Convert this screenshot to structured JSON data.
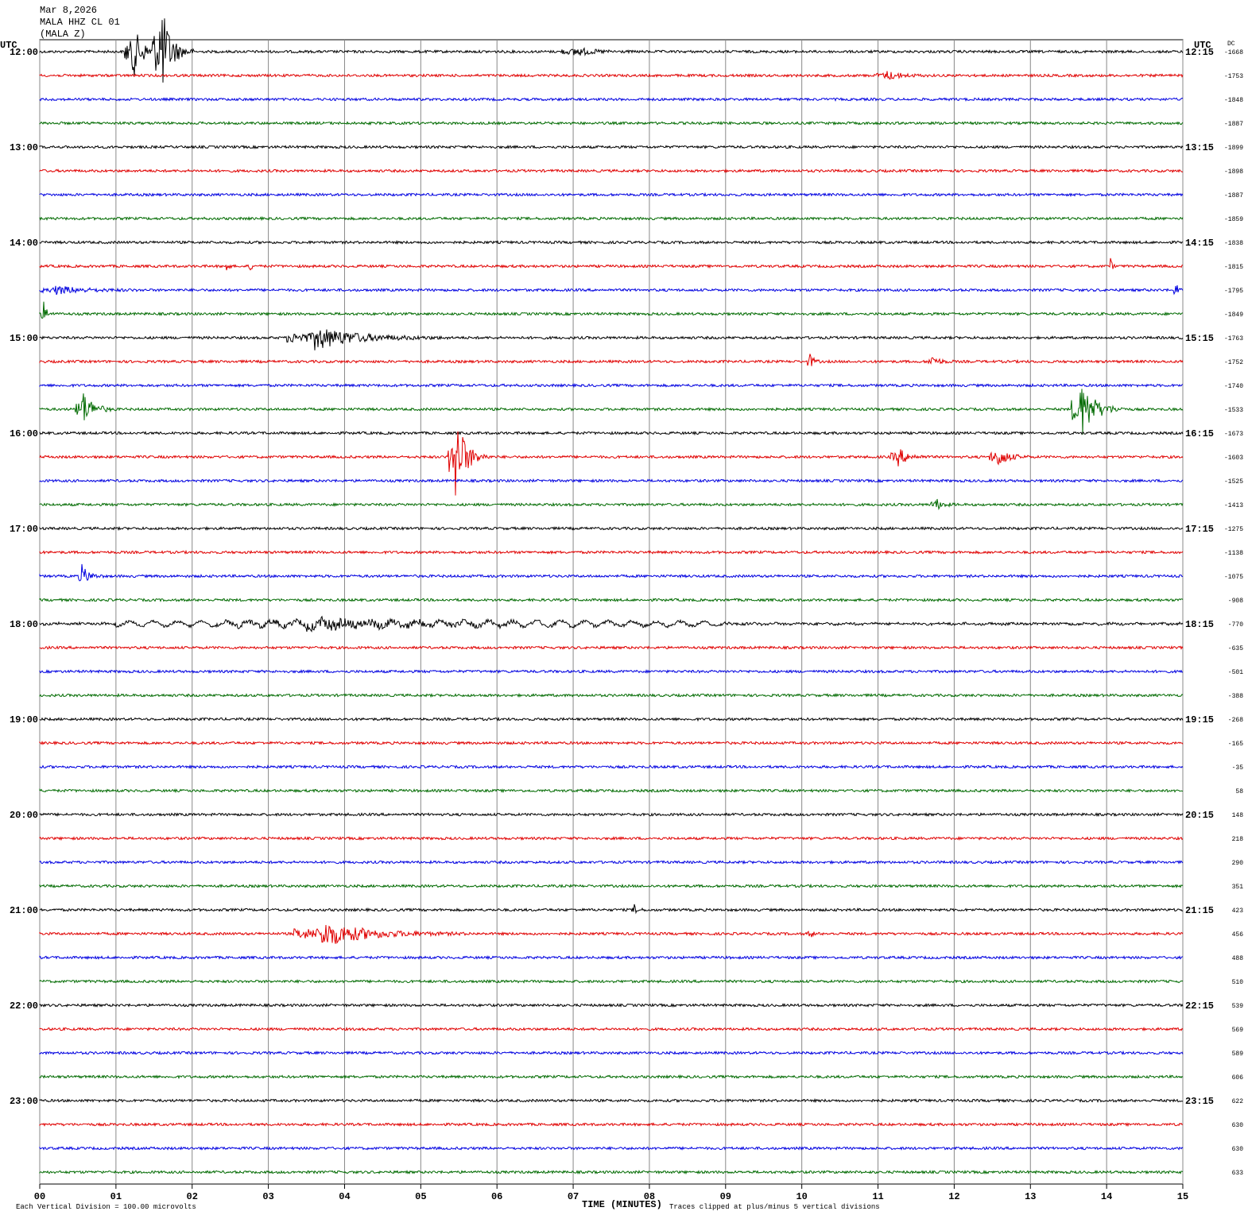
{
  "header": {
    "date": "Mar 8,2026",
    "station": "MALA HHZ CL 01",
    "component": "(MALA Z)",
    "left_zone": "UTC",
    "right_zone": "UTC",
    "dc_label": "DC"
  },
  "left_labels": [
    "12:00",
    "13:00",
    "14:00",
    "15:00",
    "16:00",
    "17:00",
    "18:00",
    "19:00",
    "20:00",
    "21:00",
    "22:00",
    "23:00"
  ],
  "right_labels": [
    "12:15",
    "13:15",
    "14:15",
    "15:15",
    "16:15",
    "17:15",
    "18:15",
    "19:15",
    "20:15",
    "21:15",
    "22:15",
    "23:15"
  ],
  "dc_offsets": [
    -1668,
    -1753,
    -1848,
    -1887,
    -1899,
    -1898,
    -1887,
    -1859,
    -1838,
    -1815,
    -1795,
    -1849,
    -1763,
    -1752,
    -1740,
    -1533,
    -1673,
    -1603,
    -1525,
    -1413,
    -1275,
    -1138,
    -1075,
    -908,
    -770,
    -635,
    -501,
    -388,
    -268,
    -165,
    -35,
    58,
    148,
    218,
    290,
    351,
    423,
    456,
    488,
    510,
    539,
    569,
    589,
    606,
    622,
    630,
    630,
    633
  ],
  "x_ticks": [
    "00",
    "01",
    "02",
    "03",
    "04",
    "05",
    "06",
    "07",
    "08",
    "09",
    "10",
    "11",
    "12",
    "13",
    "14",
    "15"
  ],
  "footer": {
    "scale": "Each Vertical Division =  100.00 microvolts",
    "x_axis_title": "TIME (MINUTES)",
    "clip_note": "Traces clipped at plus/minus 5 vertical divisions"
  }
}
